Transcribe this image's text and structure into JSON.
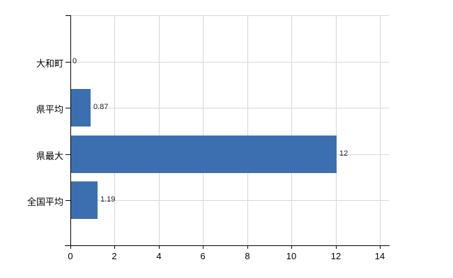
{
  "chart_data": {
    "type": "bar",
    "orientation": "horizontal",
    "title": "",
    "xlabel": "",
    "ylabel": "",
    "categories": [
      "大和町",
      "県平均",
      "県最大",
      "全国平均"
    ],
    "values": [
      0,
      0.87,
      12,
      1.19
    ],
    "value_labels": [
      "0",
      "0.87",
      "12",
      "1.19"
    ],
    "x_ticks": [
      "0",
      "2",
      "4",
      "6",
      "8",
      "10",
      "12",
      "14"
    ],
    "x_tick_values": [
      0,
      2,
      4,
      6,
      8,
      10,
      12,
      14
    ],
    "xlim": [
      0,
      14.4
    ],
    "grid": true,
    "legend": "none",
    "colors": {
      "bar": "#3c6fb0",
      "grid": "#d6d6d6",
      "axis": "#000000",
      "value_label_text": "#222222",
      "category_label_text": "#000000",
      "tick_label_text": "#000000",
      "background": "#ffffff"
    }
  }
}
